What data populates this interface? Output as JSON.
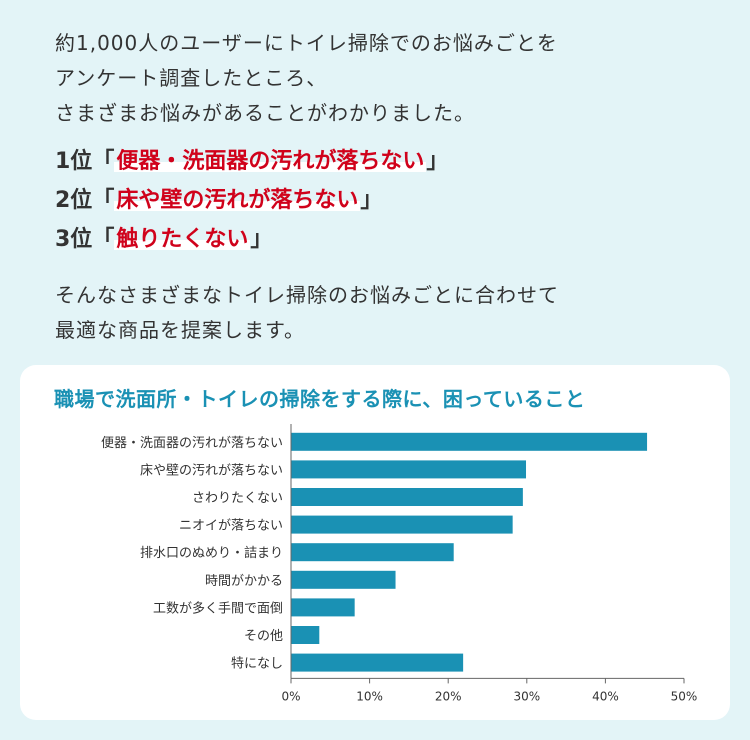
{
  "intro": {
    "lines": [
      "約1,000人のユーザーにトイレ掃除でのお悩みごとを",
      "アンケート調査したところ、",
      "さまざまお悩みがあることがわかりました。"
    ]
  },
  "ranking": [
    {
      "rank": "1位",
      "open": "「",
      "item": "便器・洗面器の汚れが落ちない",
      "close": "」"
    },
    {
      "rank": "2位",
      "open": "「",
      "item": "床や壁の汚れが落ちない",
      "close": "」"
    },
    {
      "rank": "3位",
      "open": "「",
      "item": "触りたくない",
      "close": "」"
    }
  ],
  "outro": {
    "lines": [
      "そんなさまざまなトイレ掃除のお悩みごとに合わせて",
      "最適な商品を提案します。"
    ]
  },
  "colors": {
    "background": "#e3f4f7",
    "accent_red": "#d0021b",
    "title_blue": "#1a91b4",
    "bar": "#1a91b4"
  },
  "chart_data": {
    "type": "bar",
    "orientation": "horizontal",
    "title": "職場で洗面所・トイレの掃除をする際に、困っていること",
    "categories": [
      "便器・洗面器の汚れが落ちない",
      "床や壁の汚れが落ちない",
      "さわりたくない",
      "ニオイが落ちない",
      "排水口のぬめり・詰まり",
      "時間がかかる",
      "工数が多く手間で面倒",
      "その他",
      "特になし"
    ],
    "values": [
      45.3,
      29.9,
      29.5,
      28.2,
      20.7,
      13.3,
      8.1,
      3.6,
      21.9
    ],
    "unit": "%",
    "xlim": [
      0,
      50
    ],
    "xticks": [
      0,
      10,
      20,
      30,
      40,
      50
    ],
    "xtick_labels": [
      "0%",
      "10%",
      "20%",
      "30%",
      "40%",
      "50%"
    ],
    "grid": false
  }
}
